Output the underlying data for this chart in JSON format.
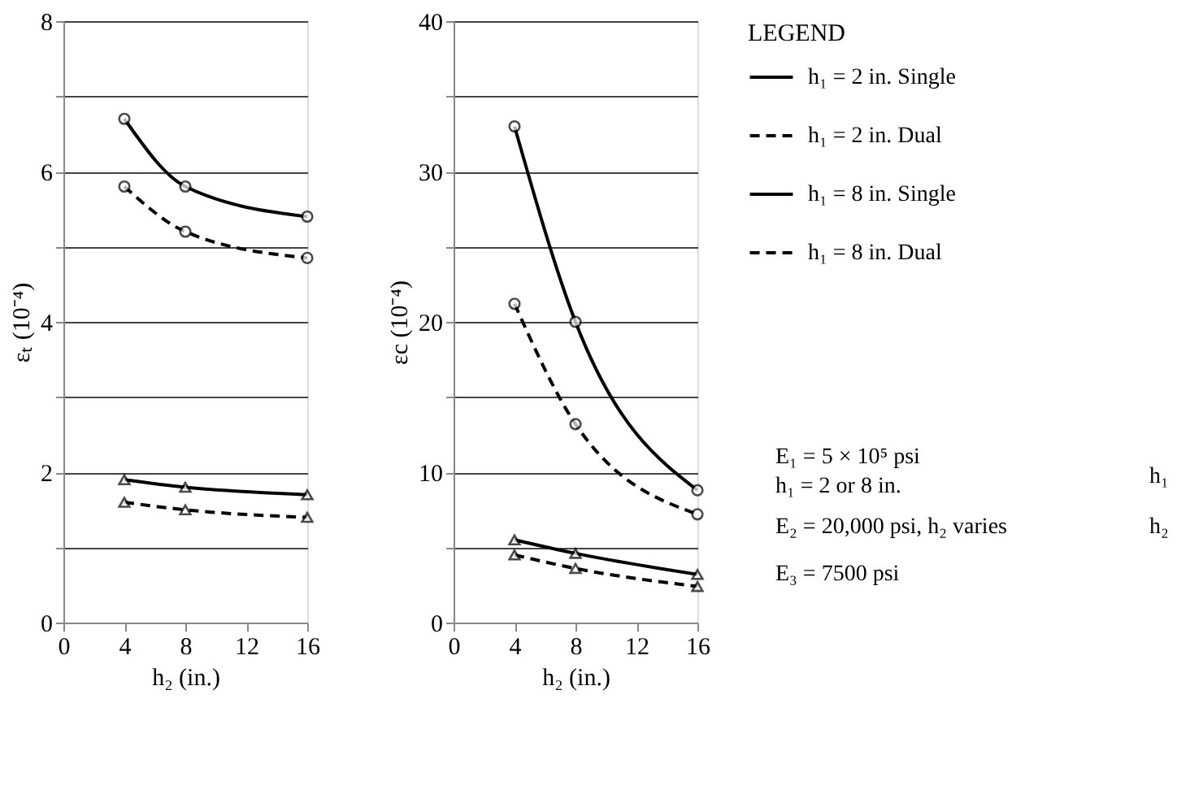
{
  "chart_data": [
    {
      "type": "line",
      "xlabel": "h₂ (in.)",
      "ylabel": "εₜ (10⁻⁴)",
      "x": [
        4,
        8,
        16
      ],
      "xlim": [
        0,
        16
      ],
      "xticks": [
        0,
        4,
        8,
        12,
        16
      ],
      "ylim": [
        0,
        8
      ],
      "yticks": [
        0,
        {
          "value": 1,
          "label": null
        },
        2,
        {
          "value": 3,
          "label": null
        },
        4,
        {
          "value": 5,
          "label": null
        },
        6,
        {
          "value": 7,
          "label": null
        },
        8
      ],
      "grid": "y",
      "legend": false,
      "series": [
        {
          "color": "#000000",
          "marker": "circle",
          "line_style": "solid",
          "values": [
            6.7,
            5.8,
            5.4
          ]
        },
        {
          "color": "#000000",
          "marker": "circle",
          "line_style": "dashed",
          "values": [
            5.8,
            5.2,
            4.85
          ]
        },
        {
          "color": "#000000",
          "marker": "triangle",
          "line_style": "solid",
          "values": [
            1.9,
            1.8,
            1.7
          ]
        },
        {
          "color": "#000000",
          "marker": "triangle",
          "line_style": "dashed",
          "values": [
            1.6,
            1.5,
            1.4
          ]
        }
      ]
    },
    {
      "type": "line",
      "xlabel": "h₂ (in.)",
      "ylabel": "εc (10⁻⁴)",
      "x": [
        4,
        8,
        16
      ],
      "xlim": [
        0,
        16
      ],
      "xticks": [
        0,
        4,
        8,
        12,
        16
      ],
      "ylim": [
        0,
        40
      ],
      "yticks": [
        0,
        {
          "value": 5,
          "label": null
        },
        10,
        {
          "value": 15,
          "label": null
        },
        20,
        {
          "value": 25,
          "label": null
        },
        30,
        {
          "value": 35,
          "label": null
        },
        40
      ],
      "grid": "y",
      "legend": "right",
      "legend_title": "LEGEND",
      "annotations": [
        "E₁ = 5 × 10⁵ psi",
        "h₁ = 2 or 8 in.",
        "E₂ = 20,000 psi, h₂ varies",
        "E₃ = 7500 psi",
        "h₁",
        "h₂"
      ],
      "series": [
        {
          "name": "h₁ = 2 in. Single",
          "color": "#000000",
          "marker": "circle",
          "line_style": "solid",
          "values": [
            33,
            20,
            8.8
          ]
        },
        {
          "name": "h₁ = 2 in. Dual",
          "color": "#000000",
          "marker": "circle",
          "line_style": "dashed",
          "values": [
            21.2,
            13.2,
            7.2
          ]
        },
        {
          "name": "h₁ = 8 in. Single",
          "color": "#000000",
          "marker": "triangle",
          "line_style": "solid",
          "values": [
            5.5,
            4.6,
            3.2
          ]
        },
        {
          "name": "h₁ = 8 in. Dual",
          "color": "#000000",
          "marker": "triangle",
          "line_style": "dashed",
          "values": [
            4.5,
            3.6,
            2.4
          ]
        }
      ]
    }
  ]
}
